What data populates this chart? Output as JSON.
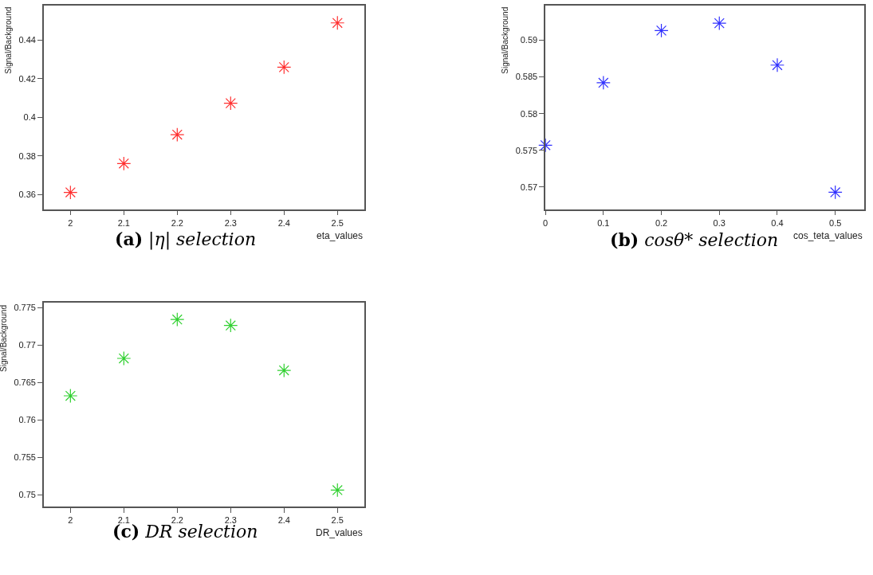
{
  "chart_data": [
    {
      "type": "scatter",
      "xlabel": "eta_values",
      "ylabel": "Signal/Background",
      "annotations": [
        "(a) |η| selection"
      ],
      "x": [
        2,
        2.1,
        2.2,
        2.3,
        2.4,
        2.5
      ],
      "marker": "cross",
      "series": [
        {
          "color": "#ff3030",
          "values": [
            0.361,
            0.376,
            0.391,
            0.4073,
            0.426,
            0.449
          ]
        }
      ],
      "xlim": [
        1.95,
        2.55
      ],
      "xticks": [
        2,
        2.1,
        2.2,
        2.3,
        2.4,
        2.5
      ],
      "ylim": [
        0.3523,
        0.458
      ],
      "yticks": [
        0.36,
        0.38,
        0.4,
        0.42,
        0.44
      ]
    },
    {
      "type": "scatter",
      "xlabel": "cos_teta_values",
      "ylabel": "Signal/Background",
      "annotations": [
        "(b) cosθ* selection"
      ],
      "x": [
        0,
        0.1,
        0.2,
        0.3,
        0.4,
        0.5
      ],
      "marker": "cross",
      "series": [
        {
          "color": "#3030ff",
          "values": [
            0.5757,
            0.5842,
            0.5913,
            0.5923,
            0.5866,
            0.5693
          ]
        }
      ],
      "xlim": [
        0,
        0.55
      ],
      "xticks": [
        0,
        0.1,
        0.2,
        0.3,
        0.4,
        0.5
      ],
      "ylim": [
        0.567,
        0.5947
      ],
      "yticks": [
        0.57,
        0.575,
        0.58,
        0.585,
        0.59
      ]
    },
    {
      "type": "scatter",
      "xlabel": "DR_values",
      "ylabel": "Signal/Background",
      "annotations": [
        "(c) DR selection"
      ],
      "x": [
        2,
        2.1,
        2.2,
        2.3,
        2.4,
        2.5
      ],
      "marker": "cross",
      "series": [
        {
          "color": "#30d030",
          "values": [
            0.7632,
            0.7682,
            0.7734,
            0.7726,
            0.7666,
            0.7506
          ]
        }
      ],
      "xlim": [
        1.95,
        2.55
      ],
      "xticks": [
        2,
        2.1,
        2.2,
        2.3,
        2.4,
        2.5
      ],
      "ylim": [
        0.7484,
        0.7756
      ],
      "yticks": [
        0.75,
        0.755,
        0.76,
        0.765,
        0.77,
        0.775
      ]
    }
  ]
}
